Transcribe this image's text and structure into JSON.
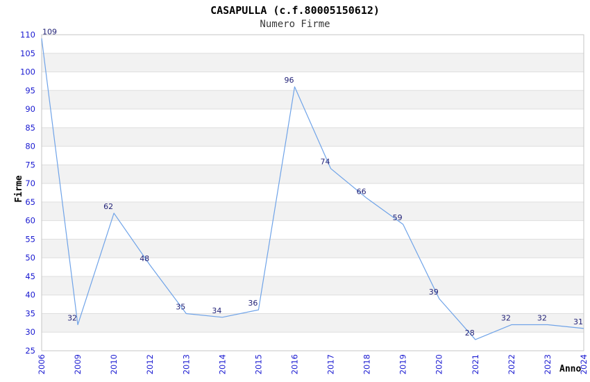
{
  "chart_data": {
    "type": "line",
    "title": "CASAPULLA (c.f.80005150612)",
    "subtitle": "Numero Firme",
    "xlabel": "Anno",
    "ylabel": "Firme",
    "categories": [
      "2006",
      "2009",
      "2010",
      "2012",
      "2013",
      "2014",
      "2015",
      "2016",
      "2017",
      "2018",
      "2019",
      "2020",
      "2021",
      "2022",
      "2023",
      "2024"
    ],
    "series": [
      {
        "name": "Numero Firme",
        "values": [
          109,
          32,
          62,
          48,
          35,
          34,
          36,
          96,
          74,
          66,
          59,
          39,
          28,
          32,
          32,
          31
        ]
      }
    ],
    "ylim": [
      25,
      110
    ],
    "ytick_step": 5,
    "yticks": [
      25,
      30,
      35,
      40,
      45,
      50,
      55,
      60,
      65,
      70,
      75,
      80,
      85,
      90,
      95,
      100,
      105,
      110
    ],
    "grid": "horizontal-bands-alternating",
    "legend": "none",
    "data_labels_visible": true,
    "colors": {
      "line": "#6fa3e8",
      "tick_label": "#1a1ad1",
      "data_label": "#222277",
      "band_alt": "#f2f2f2",
      "band_base": "#ffffff",
      "grid_line": "#dedede",
      "plot_border": "#c6c6c6",
      "title": "#000000",
      "subtitle": "#383838",
      "axis_title": "#000000",
      "background": "#ffffff"
    }
  }
}
